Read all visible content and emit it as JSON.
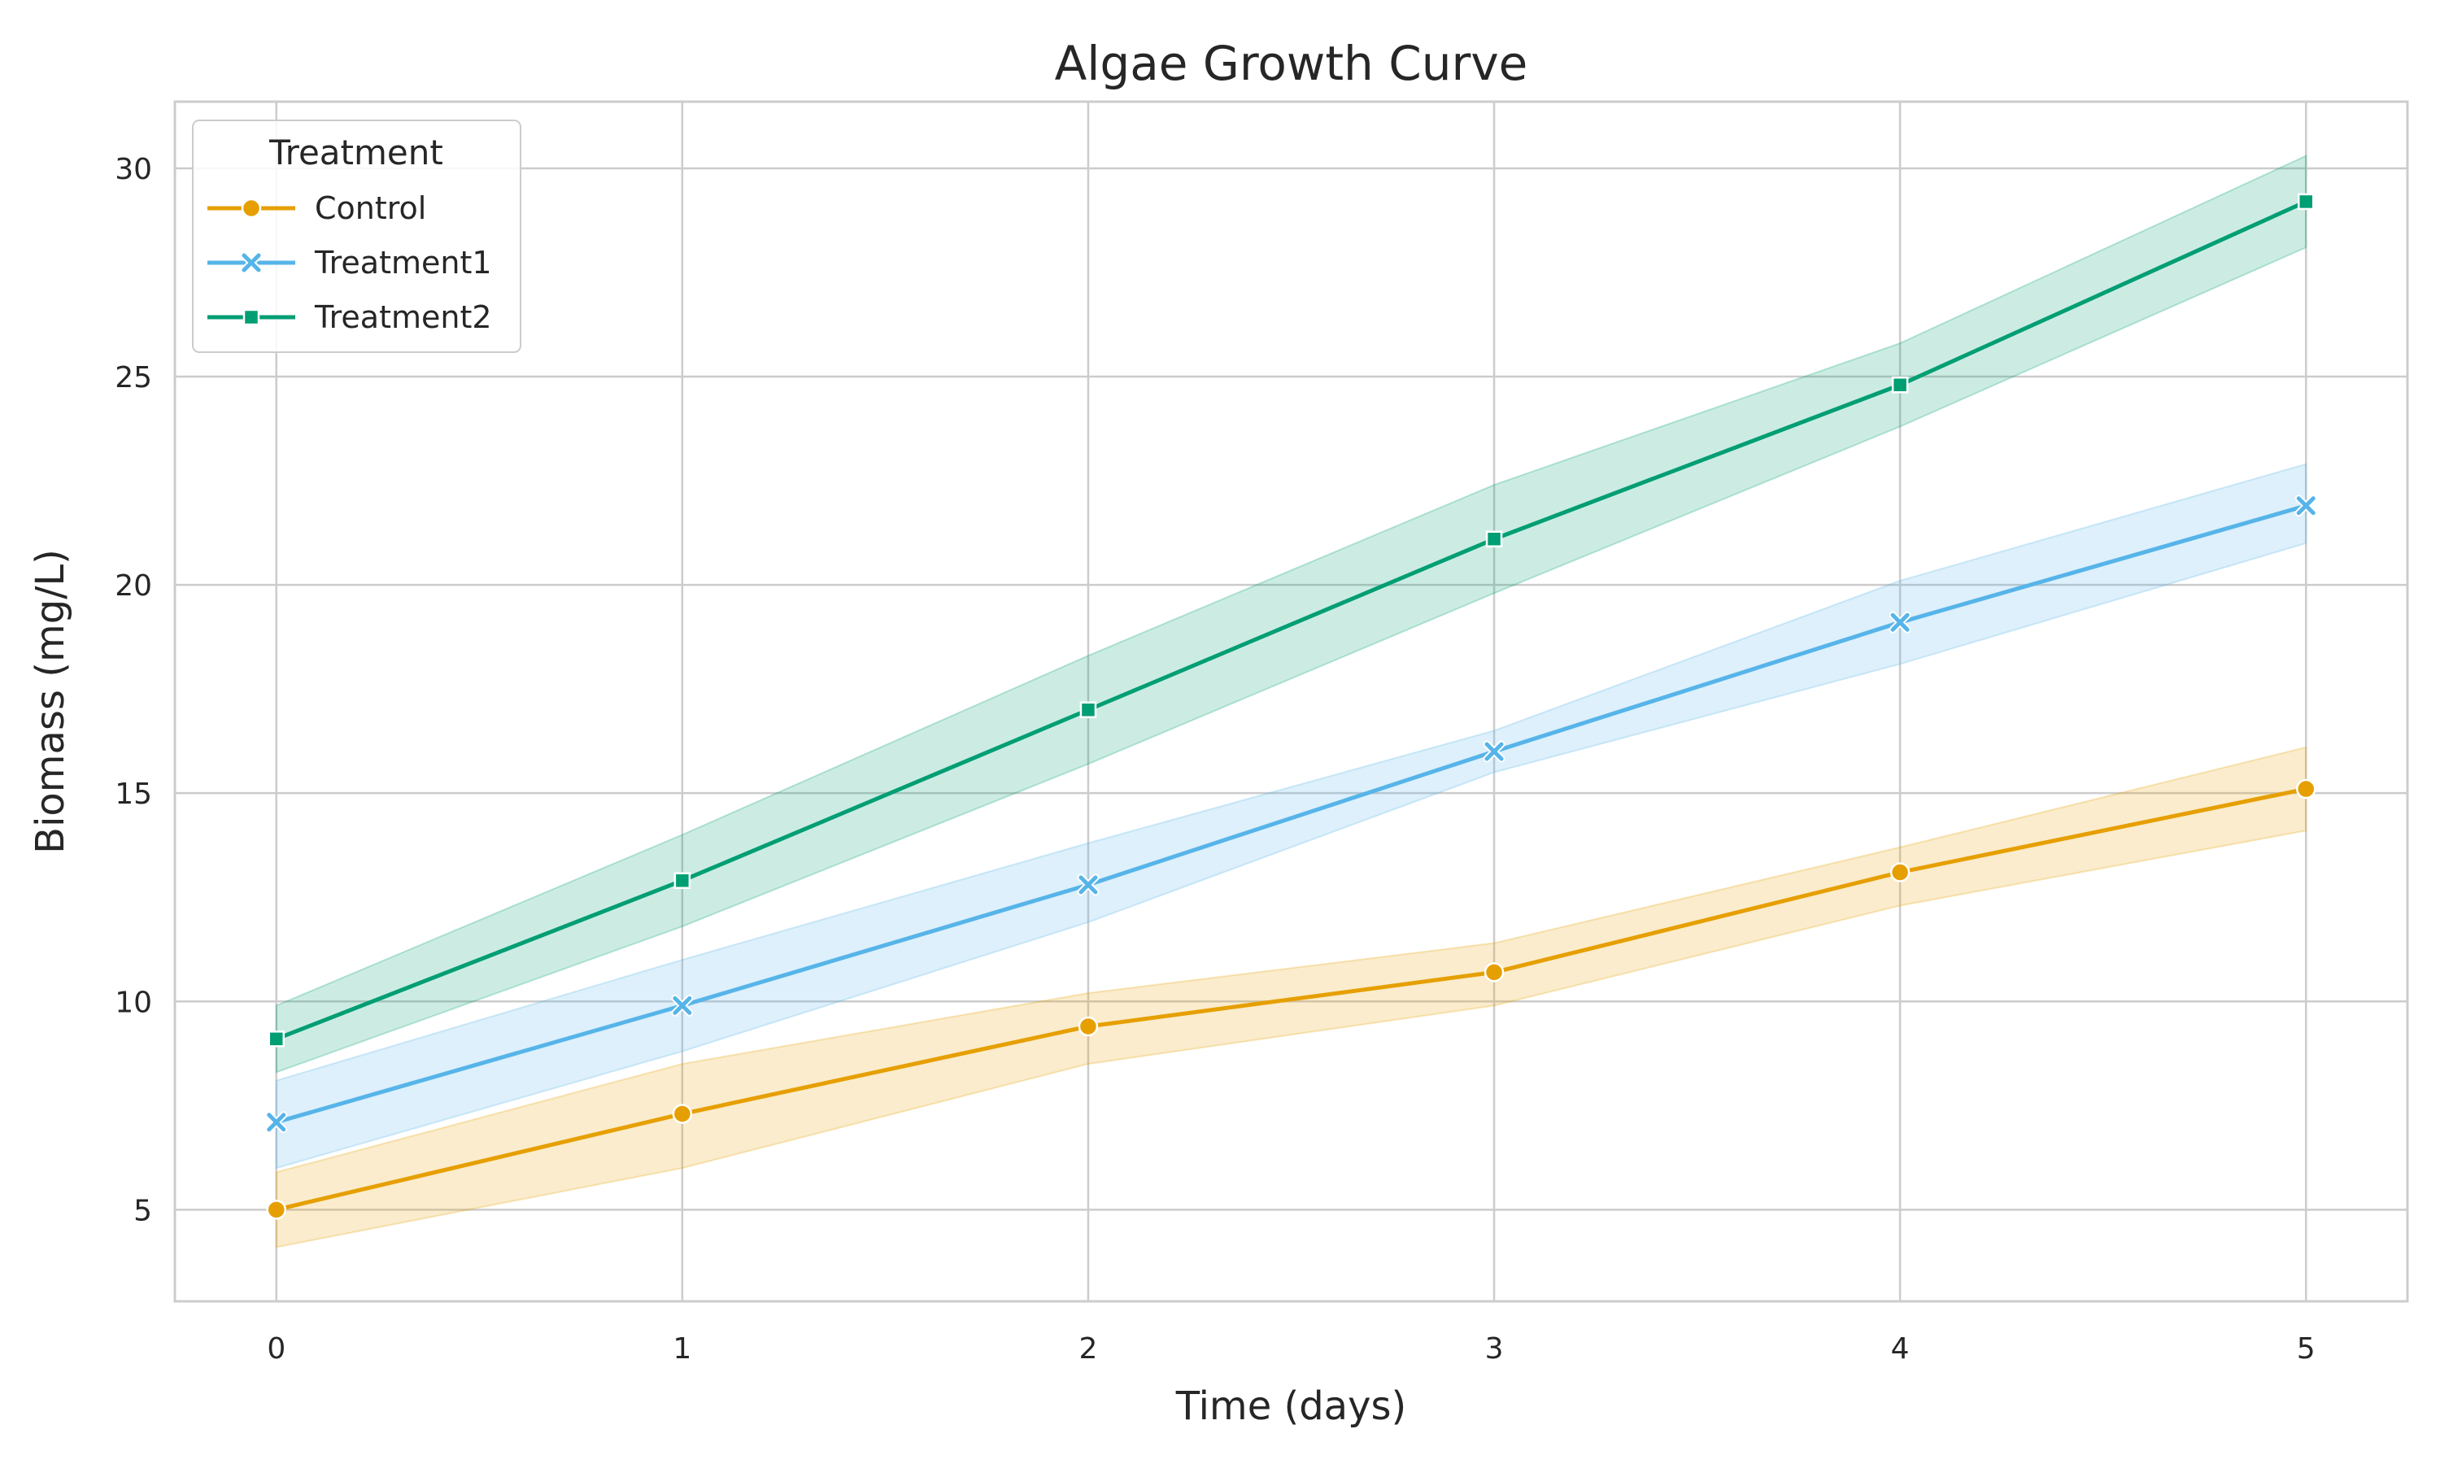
{
  "chart_data": {
    "type": "line",
    "title": "Algae Growth Curve",
    "xlabel": "Time (days)",
    "ylabel": "Biomass (mg/L)",
    "x": [
      0,
      1,
      2,
      3,
      4,
      5
    ],
    "xticks": [
      "0",
      "1",
      "2",
      "3",
      "4",
      "5"
    ],
    "yticks": [
      "5",
      "10",
      "15",
      "20",
      "25",
      "30"
    ],
    "xlim": [
      -0.25,
      5.25
    ],
    "ylim": [
      2.8,
      31.6
    ],
    "grid": true,
    "legend": {
      "title": "Treatment",
      "placement": "upper-left"
    },
    "series": [
      {
        "name": "Control",
        "color": "#E69F00",
        "marker": "circle",
        "values": [
          5.0,
          7.3,
          9.4,
          10.7,
          13.1,
          15.1
        ],
        "lower": [
          4.1,
          6.0,
          8.5,
          9.9,
          12.3,
          14.1
        ],
        "upper": [
          5.9,
          8.5,
          10.2,
          11.4,
          13.7,
          16.1
        ]
      },
      {
        "name": "Treatment1",
        "color": "#56B4E9",
        "marker": "x",
        "values": [
          7.1,
          9.9,
          12.8,
          16.0,
          19.1,
          21.9
        ],
        "lower": [
          6.0,
          8.8,
          11.9,
          15.5,
          18.1,
          21.0
        ],
        "upper": [
          8.1,
          11.0,
          13.8,
          16.5,
          20.1,
          22.9
        ]
      },
      {
        "name": "Treatment2",
        "color": "#009E73",
        "marker": "square",
        "values": [
          9.1,
          12.9,
          17.0,
          21.1,
          24.8,
          29.2
        ],
        "lower": [
          8.3,
          11.8,
          15.7,
          19.8,
          23.8,
          28.1
        ],
        "upper": [
          9.9,
          14.0,
          18.3,
          22.4,
          25.8,
          30.3
        ]
      }
    ]
  }
}
